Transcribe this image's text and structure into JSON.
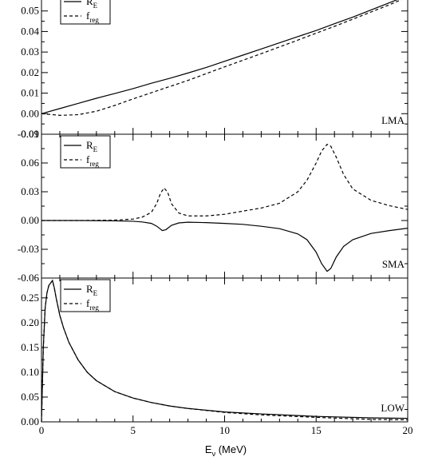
{
  "chart_data": {
    "type": "line",
    "xlabel": "E",
    "xlabel_sub": "ν",
    "xlabel_unit": " (MeV)",
    "x_ticks": [
      "0",
      "5",
      "10",
      "15",
      "20"
    ],
    "xlim": [
      0,
      20
    ],
    "panels": [
      {
        "label": "LMA",
        "ylim": [
          -0.01,
          0.06
        ],
        "y_ticks": [
          {
            "v": 0.05,
            "t": "0.05"
          },
          {
            "v": 0.04,
            "t": "0.04"
          },
          {
            "v": 0.03,
            "t": "0.03"
          },
          {
            "v": 0.02,
            "t": "0.02"
          },
          {
            "v": 0.01,
            "t": "0.01"
          },
          {
            "v": 0.0,
            "t": "0.00"
          },
          {
            "v": -0.01,
            "t": "-0.01"
          }
        ],
        "legend": [
          {
            "main": "R",
            "sub": "E",
            "style": "solid"
          },
          {
            "main": "f",
            "sub": "reg",
            "style": "dashed"
          }
        ],
        "series": [
          {
            "name": "R_E",
            "style": "solid",
            "x": [
              0,
              1,
              2,
              3,
              4,
              5,
              6,
              7,
              8,
              9,
              10,
              11,
              12,
              13,
              14,
              15,
              16,
              17,
              18,
              19,
              20
            ],
            "y": [
              0.0,
              0.0025,
              0.005,
              0.0075,
              0.0098,
              0.0122,
              0.0148,
              0.0172,
              0.0198,
              0.0225,
              0.0255,
              0.0285,
              0.0315,
              0.0345,
              0.0375,
              0.0405,
              0.0438,
              0.047,
              0.0505,
              0.054,
              0.0575
            ]
          },
          {
            "name": "f_reg",
            "style": "dashed",
            "x": [
              0,
              1,
              2,
              3,
              4,
              5,
              6,
              7,
              8,
              9,
              10,
              11,
              12,
              13,
              14,
              15,
              16,
              17,
              18,
              19,
              20
            ],
            "y": [
              0.0,
              -0.0008,
              -0.0005,
              0.0012,
              0.004,
              0.0072,
              0.0102,
              0.0132,
              0.0162,
              0.0195,
              0.0228,
              0.026,
              0.0292,
              0.0325,
              0.0358,
              0.0392,
              0.0425,
              0.046,
              0.0495,
              0.053,
              0.0568
            ]
          }
        ]
      },
      {
        "label": "SMA",
        "ylim": [
          -0.06,
          0.09
        ],
        "y_ticks": [
          {
            "v": 0.09,
            "t": "0.09"
          },
          {
            "v": 0.06,
            "t": "0.06"
          },
          {
            "v": 0.03,
            "t": "0.03"
          },
          {
            "v": 0.0,
            "t": "0.00"
          },
          {
            "v": -0.03,
            "t": "-0.03"
          },
          {
            "v": -0.06,
            "t": "-0.06"
          }
        ],
        "legend": [
          {
            "main": "R",
            "sub": "E",
            "style": "solid"
          },
          {
            "main": "f",
            "sub": "reg",
            "style": "dashed"
          }
        ],
        "series": [
          {
            "name": "R_E",
            "style": "solid",
            "x": [
              0,
              2,
              4,
              5,
              5.5,
              6,
              6.3,
              6.6,
              6.8,
              7.1,
              7.5,
              8,
              9,
              10,
              11,
              12,
              13,
              14,
              14.5,
              15,
              15.3,
              15.6,
              15.8,
              16.1,
              16.5,
              17,
              18,
              19,
              20
            ],
            "y": [
              0.0,
              0.0,
              -0.0003,
              -0.0008,
              -0.0015,
              -0.003,
              -0.006,
              -0.0105,
              -0.0095,
              -0.005,
              -0.0025,
              -0.0018,
              -0.0022,
              -0.003,
              -0.004,
              -0.006,
              -0.0085,
              -0.014,
              -0.02,
              -0.033,
              -0.045,
              -0.053,
              -0.05,
              -0.038,
              -0.027,
              -0.02,
              -0.0135,
              -0.0105,
              -0.008
            ]
          },
          {
            "name": "f_reg",
            "style": "dashed",
            "x": [
              0,
              2,
              4,
              5,
              5.5,
              6,
              6.3,
              6.5,
              6.7,
              6.9,
              7.1,
              7.5,
              8,
              9,
              10,
              11,
              12,
              13,
              14,
              14.5,
              15,
              15.3,
              15.6,
              15.8,
              16.1,
              16.5,
              17,
              18,
              19,
              20
            ],
            "y": [
              0.0,
              0.0,
              0.0004,
              0.0015,
              0.0035,
              0.0085,
              0.018,
              0.0285,
              0.034,
              0.029,
              0.0175,
              0.0078,
              0.0048,
              0.0048,
              0.0065,
              0.0098,
              0.013,
              0.018,
              0.03,
              0.042,
              0.06,
              0.0725,
              0.0795,
              0.0775,
              0.066,
              0.048,
              0.033,
              0.021,
              0.0155,
              0.0115
            ]
          }
        ]
      },
      {
        "label": "LOW",
        "ylim": [
          0.0,
          0.29
        ],
        "y_ticks": [
          {
            "v": 0.25,
            "t": "0.25"
          },
          {
            "v": 0.2,
            "t": "0.20"
          },
          {
            "v": 0.15,
            "t": "0.15"
          },
          {
            "v": 0.1,
            "t": "0.10"
          },
          {
            "v": 0.05,
            "t": "0.05"
          },
          {
            "v": 0.0,
            "t": "0.00"
          }
        ],
        "legend": [
          {
            "main": "R",
            "sub": "E",
            "style": "solid"
          },
          {
            "main": "f",
            "sub": "reg",
            "style": "dashed"
          }
        ],
        "series": [
          {
            "name": "R_E",
            "style": "solid",
            "x": [
              0,
              0.1,
              0.2,
              0.3,
              0.4,
              0.5,
              0.6,
              0.7,
              0.8,
              1,
              1.2,
              1.5,
              2,
              2.5,
              3,
              4,
              5,
              6,
              7,
              8,
              10,
              12,
              15,
              18,
              20
            ],
            "y": [
              0.0,
              0.15,
              0.23,
              0.26,
              0.275,
              0.28,
              0.285,
              0.27,
              0.25,
              0.215,
              0.19,
              0.16,
              0.125,
              0.1,
              0.083,
              0.061,
              0.048,
              0.039,
              0.032,
              0.027,
              0.02,
              0.016,
              0.011,
              0.008,
              0.007
            ]
          },
          {
            "name": "f_reg",
            "style": "dashed",
            "x": [
              0,
              0.1,
              0.2,
              0.3,
              0.4,
              0.5,
              0.6,
              0.7,
              0.8,
              1,
              1.2,
              1.5,
              2,
              2.5,
              3,
              4,
              5,
              6,
              7,
              8,
              10,
              12,
              15,
              18,
              20
            ],
            "y": [
              0.0,
              0.15,
              0.23,
              0.26,
              0.275,
              0.28,
              0.285,
              0.27,
              0.25,
              0.215,
              0.19,
              0.16,
              0.125,
              0.1,
              0.083,
              0.061,
              0.048,
              0.039,
              0.032,
              0.027,
              0.019,
              0.014,
              0.009,
              0.005,
              0.004
            ]
          }
        ]
      }
    ]
  }
}
